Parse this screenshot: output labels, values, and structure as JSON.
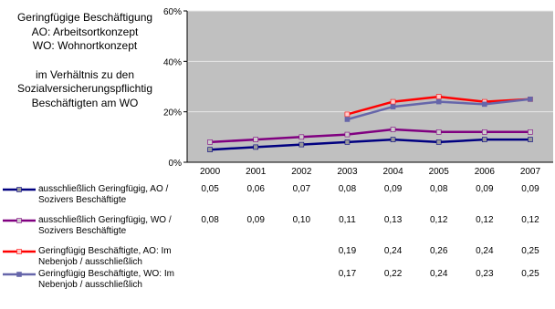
{
  "title_lines": [
    "Geringfügige Beschäftigung",
    "AO: Arbeitsortkonzept",
    "WO: Wohnortkonzept",
    "",
    "im Verhältnis zu den",
    "Sozialversicherungspflichtig",
    "Beschäftigten am WO"
  ],
  "chart_data": {
    "type": "line",
    "x": [
      "2000",
      "2001",
      "2002",
      "2003",
      "2004",
      "2005",
      "2006",
      "2007"
    ],
    "ylim": [
      0,
      0.6
    ],
    "yticks": [
      "0%",
      "20%",
      "40%",
      "60%"
    ],
    "grid": true,
    "series": [
      {
        "name": "ausschließlich Geringfügig, AO / Sozivers Beschäftigte",
        "color": "#000080",
        "marker_color": "#999999",
        "values": [
          0.05,
          0.06,
          0.07,
          0.08,
          0.09,
          0.08,
          0.09,
          0.09
        ],
        "labels": [
          "0,05",
          "0,06",
          "0,07",
          "0,08",
          "0,09",
          "0,08",
          "0,09",
          "0,09"
        ]
      },
      {
        "name": "ausschließlich Geringfügig, WO / Sozivers Beschäftigte",
        "color": "#800080",
        "marker_color": "#cccccc",
        "values": [
          0.08,
          0.09,
          0.1,
          0.11,
          0.13,
          0.12,
          0.12,
          0.12
        ],
        "labels": [
          "0,08",
          "0,09",
          "0,10",
          "0,11",
          "0,13",
          "0,12",
          "0,12",
          "0,12"
        ]
      },
      {
        "name": "Geringfügig Beschäftigte, AO: Im Nebenjob / ausschließlich",
        "color": "#ff0000",
        "marker_color": "#ffcccc",
        "values": [
          null,
          null,
          null,
          0.19,
          0.24,
          0.26,
          0.24,
          0.25
        ],
        "labels": [
          "",
          "",
          "",
          "0,19",
          "0,24",
          "0,26",
          "0,24",
          "0,25"
        ]
      },
      {
        "name": "Geringfügig Beschäftigte, WO: Im Nebenjob / ausschließlich",
        "color": "#6666aa",
        "marker_color": "#6666aa",
        "values": [
          null,
          null,
          null,
          0.17,
          0.22,
          0.24,
          0.23,
          0.25
        ],
        "labels": [
          "",
          "",
          "",
          "0,17",
          "0,22",
          "0,24",
          "0,23",
          "0,25"
        ]
      }
    ]
  }
}
